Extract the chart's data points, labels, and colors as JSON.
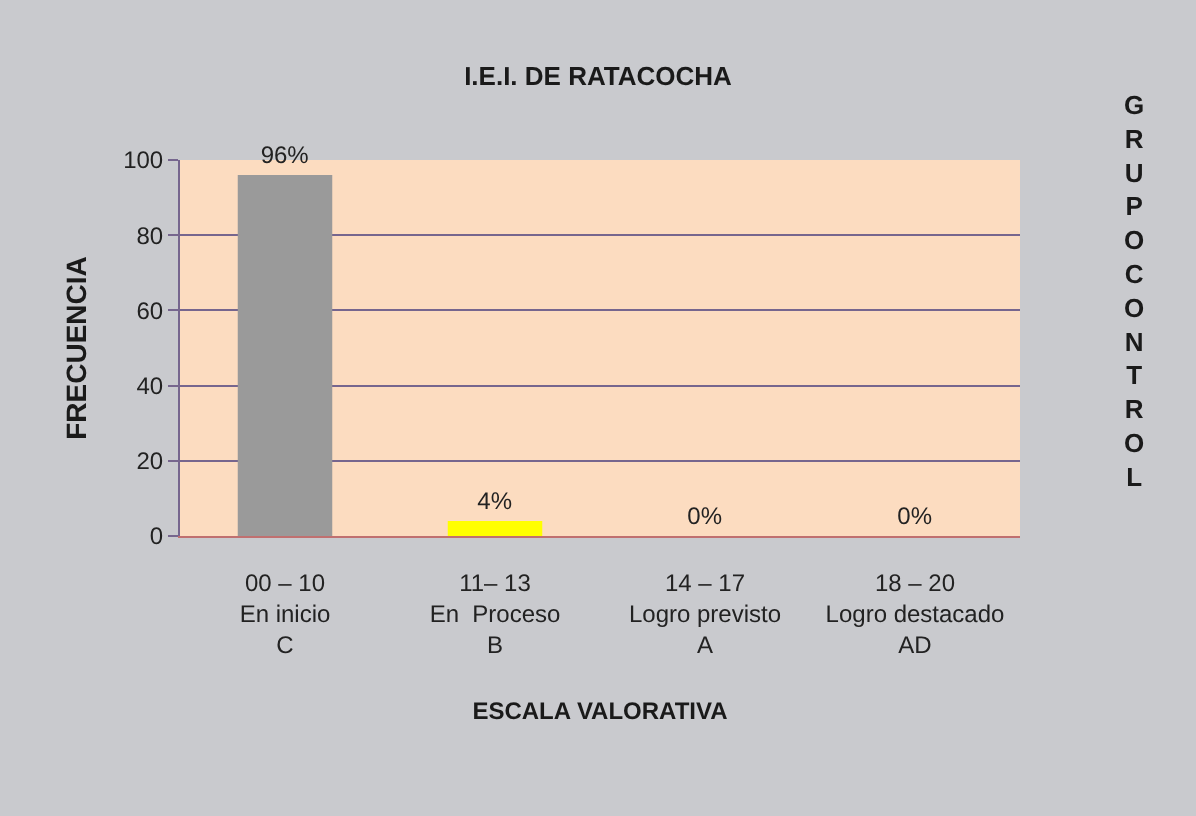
{
  "chart_data": {
    "type": "bar",
    "title": "I.E.I. DE RATACOCHA",
    "xlabel": "ESCALA VALORATIVA",
    "ylabel": "FRECUENCIA",
    "categories": [
      "00 – 10\nEn inicio\nC",
      "11– 13\nEn  Proceso\nB",
      "14 – 17\nLogro previsto\nA",
      "18 – 20\nLogro destacado\nAD"
    ],
    "values": [
      96,
      4,
      0,
      0
    ],
    "colors": [
      "#9a9a9a",
      "#ffff00",
      "#cc0000",
      "#002f9a"
    ],
    "value_labels": [
      "96%",
      "4%",
      "0%",
      "0%"
    ],
    "ylim": [
      0,
      100
    ],
    "yticks": [
      0,
      20,
      40,
      60,
      80,
      100
    ],
    "grid": "y",
    "annotations": [
      "GRUPO CONTROL"
    ]
  }
}
